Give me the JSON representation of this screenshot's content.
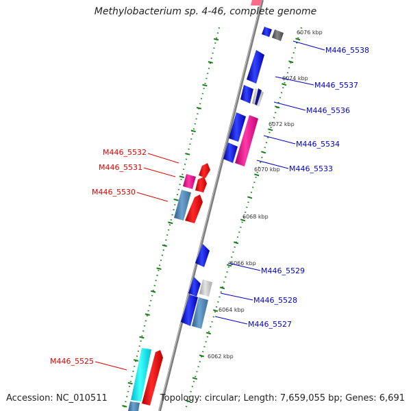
{
  "title": "Methylobacterium sp. 4-46, complete genome",
  "footer": {
    "accession": "Accession: NC_010511",
    "topology": "Topology: circular; Length: 7,659,055 bp; Genes: 6,691"
  },
  "colors": {
    "forward_label": "#0000cc",
    "reverse_label": "#dd0000",
    "backbone": "#8a8a8a",
    "tick_dots": "#228b22",
    "tick_dash": "#1a7a1a"
  },
  "scale_ticks": [
    {
      "label": "6062 kbp"
    },
    {
      "label": "6064 kbp"
    },
    {
      "label": "6066 kbp"
    },
    {
      "label": "6068 kbp"
    },
    {
      "label": "6070 kbp"
    },
    {
      "label": "6072 kbp"
    },
    {
      "label": "6074 kbp"
    },
    {
      "label": "6076 kbp"
    }
  ],
  "gene_labels": {
    "forward": [
      {
        "label": "M446_5538"
      },
      {
        "label": "M446_5537"
      },
      {
        "label": "M446_5536"
      },
      {
        "label": "M446_5534"
      },
      {
        "label": "M446_5533"
      },
      {
        "label": "M446_5529"
      },
      {
        "label": "M446_5528"
      },
      {
        "label": "M446_5527"
      }
    ],
    "reverse": [
      {
        "label": "M446_5532"
      },
      {
        "label": "M446_5531"
      },
      {
        "label": "M446_5530"
      },
      {
        "label": "M446_5525"
      }
    ]
  }
}
